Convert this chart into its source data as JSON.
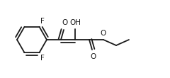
{
  "bg_color": "#ffffff",
  "line_color": "#1a1a1a",
  "line_width": 1.3,
  "font_size": 7.5,
  "fig_width": 2.4,
  "fig_height": 1.1,
  "dpi": 100,
  "labels": {
    "F_top": "F",
    "F_bot": "F",
    "O_ketone": "O",
    "OH": "OH",
    "O_ester_double": "O",
    "O_ester_single": "O"
  }
}
